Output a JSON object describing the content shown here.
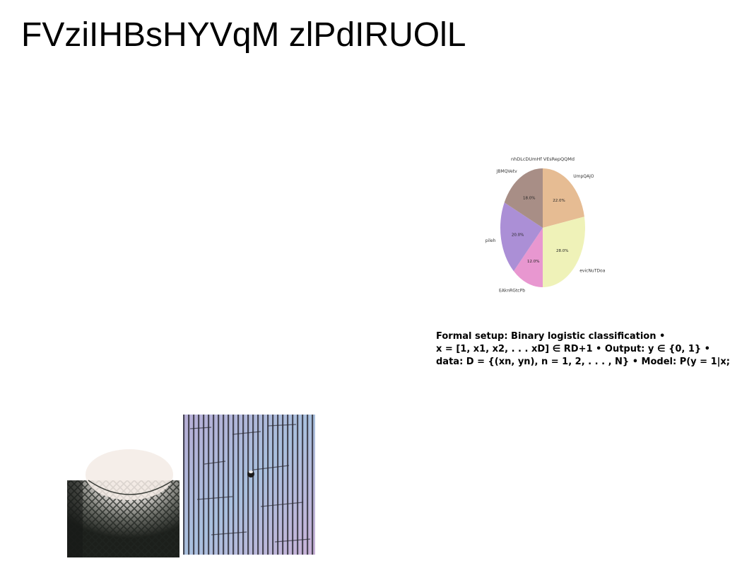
{
  "slide": {
    "title": "FVziIHBsHYVqM zlPdIRUOlL"
  },
  "chart_data": {
    "type": "pie",
    "title": "nhDLcDUmHf VEsRepQQMd",
    "slices": [
      {
        "label": "UmpQAjO",
        "value": 22.0,
        "pct_text": "22.0%",
        "color": "#e6bc93"
      },
      {
        "label": "evicNuTDoa",
        "value": 28.0,
        "pct_text": "28.0%",
        "color": "#eff2b8"
      },
      {
        "label": "EAknRGtcPb",
        "value": 12.0,
        "pct_text": "12.0%",
        "color": "#e897d0"
      },
      {
        "label": "pileh",
        "value": 20.0,
        "pct_text": "20.0%",
        "color": "#ab8fd6"
      },
      {
        "label": "JBMQVetv",
        "value": 18.0,
        "pct_text": "18.0%",
        "color": "#a88e86"
      }
    ],
    "start_angle_deg": 90,
    "direction": "clockwise"
  },
  "text_block": {
    "lines": [
      "Formal setup: Binary logistic classification •",
      "x = [1, x1, x2, . . . xD] ∈ RD+1 • Output: y ∈ {0, 1} •",
      "data: D = {(xn, yn), n = 1, 2, . . . , N} • Model: P(y = 1|x;"
    ]
  },
  "images": {
    "dome": "ceiling-dome-photo",
    "stripes": "striped-facade-photo"
  }
}
